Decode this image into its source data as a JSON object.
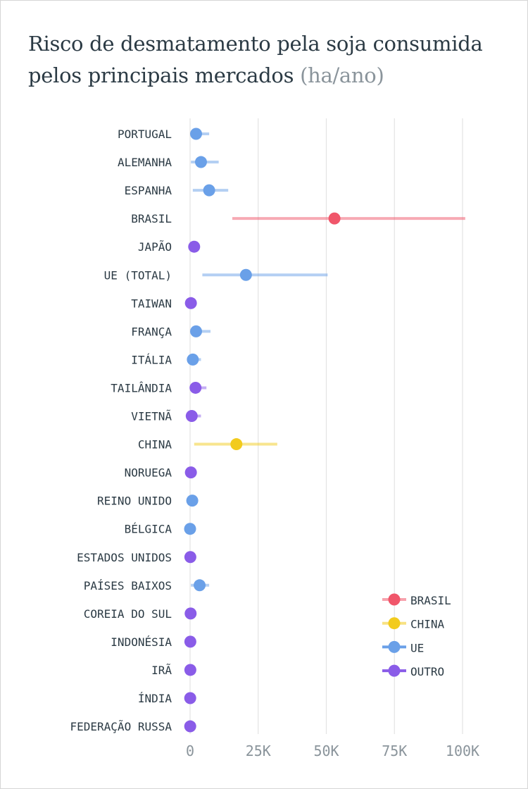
{
  "title": {
    "main": "Risco de desmatamento pela soja consumida pelos principais mercados",
    "unit": "(ha/ano)"
  },
  "colors": {
    "BRASIL": "#f0566a",
    "CHINA": "#f2cb1d",
    "UE": "#6aa0e8",
    "OUTRO": "#8a5ce8"
  },
  "chart_data": {
    "type": "dot-range",
    "title": "Risco de desmatamento pela soja consumida pelos principais mercados (ha/ano)",
    "xlim": [
      0,
      100000
    ],
    "x_ticks": [
      {
        "value": 0,
        "label": "0"
      },
      {
        "value": 25000,
        "label": "25K"
      },
      {
        "value": 50000,
        "label": "50K"
      },
      {
        "value": 75000,
        "label": "75K"
      },
      {
        "value": 100000,
        "label": "100K"
      }
    ],
    "grid": "vertical",
    "legend": {
      "position": "bottom-right",
      "entries": [
        "BRASIL",
        "CHINA",
        "UE",
        "OUTRO"
      ]
    },
    "rows": [
      {
        "label": "PORTUGAL",
        "group": "UE",
        "value": 2200,
        "low": 300,
        "high": 7000
      },
      {
        "label": "ALEMANHA",
        "group": "UE",
        "value": 4000,
        "low": 300,
        "high": 10500
      },
      {
        "label": "ESPANHA",
        "group": "UE",
        "value": 7000,
        "low": 1000,
        "high": 14000
      },
      {
        "label": "BRASIL",
        "group": "BRASIL",
        "value": 53000,
        "low": 15500,
        "high": 101000
      },
      {
        "label": "JAPÃO",
        "group": "OUTRO",
        "value": 1500,
        "low": 1500,
        "high": 1500
      },
      {
        "label": "UE (TOTAL)",
        "group": "UE",
        "value": 20500,
        "low": 4500,
        "high": 50500
      },
      {
        "label": "TAIWAN",
        "group": "OUTRO",
        "value": 300,
        "low": 300,
        "high": 300
      },
      {
        "label": "FRANÇA",
        "group": "UE",
        "value": 2200,
        "low": 500,
        "high": 7500
      },
      {
        "label": "ITÁLIA",
        "group": "UE",
        "value": 1000,
        "low": 500,
        "high": 4000
      },
      {
        "label": "TAILÂNDIA",
        "group": "OUTRO",
        "value": 2000,
        "low": 800,
        "high": 6000
      },
      {
        "label": "VIETNÃ",
        "group": "OUTRO",
        "value": 600,
        "low": 300,
        "high": 4000
      },
      {
        "label": "CHINA",
        "group": "CHINA",
        "value": 17000,
        "low": 1500,
        "high": 32000
      },
      {
        "label": "NORUEGA",
        "group": "OUTRO",
        "value": 300,
        "low": 300,
        "high": 300
      },
      {
        "label": "REINO UNIDO",
        "group": "UE",
        "value": 800,
        "low": 800,
        "high": 800
      },
      {
        "label": "BÉLGICA",
        "group": "UE",
        "value": 0,
        "low": 0,
        "high": 0
      },
      {
        "label": "ESTADOS UNIDOS",
        "group": "OUTRO",
        "value": 100,
        "low": 100,
        "high": 100
      },
      {
        "label": "PAÍSES BAIXOS",
        "group": "UE",
        "value": 3500,
        "low": 300,
        "high": 7000
      },
      {
        "label": "COREIA DO SUL",
        "group": "OUTRO",
        "value": 200,
        "low": 200,
        "high": 200
      },
      {
        "label": "INDONÉSIA",
        "group": "OUTRO",
        "value": 100,
        "low": 100,
        "high": 100
      },
      {
        "label": "IRÃ",
        "group": "OUTRO",
        "value": 100,
        "low": 100,
        "high": 100
      },
      {
        "label": "ÍNDIA",
        "group": "OUTRO",
        "value": 50,
        "low": 50,
        "high": 50
      },
      {
        "label": "FEDERAÇÃO RUSSA",
        "group": "OUTRO",
        "value": 50,
        "low": 50,
        "high": 50
      }
    ]
  }
}
